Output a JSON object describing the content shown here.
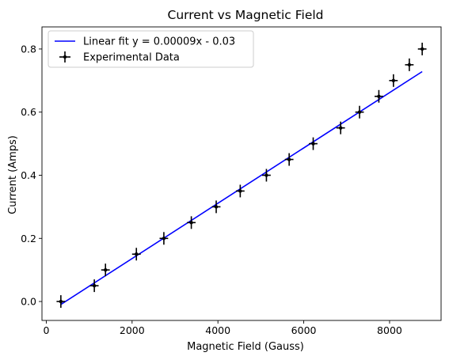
{
  "chart_data": {
    "type": "scatter",
    "title": "Current vs Magnetic Field",
    "xlabel": "Magnetic Field (Gauss)",
    "ylabel": "Current (Amps)",
    "xlim": [
      -100,
      9200
    ],
    "ylim": [
      -0.06,
      0.87
    ],
    "xticks": [
      0,
      2000,
      4000,
      6000,
      8000
    ],
    "xtick_labels": [
      "0",
      "2000",
      "4000",
      "6000",
      "8000"
    ],
    "yticks": [
      0.0,
      0.2,
      0.4,
      0.6,
      0.8
    ],
    "ytick_labels": [
      "0.0",
      "0.2",
      "0.4",
      "0.6",
      "0.8"
    ],
    "grid": false,
    "legend_position": "top-left",
    "series": [
      {
        "name": "Linear fit y = 0.00009x - 0.03",
        "kind": "line",
        "color": "#0000ff",
        "x": [
          340,
          8760
        ],
        "y": [
          -0.0094,
          0.7284
        ]
      },
      {
        "name": "Experimental Data",
        "kind": "errorbar",
        "color": "#000000",
        "x": [
          340,
          1120,
          1380,
          2100,
          2740,
          3380,
          3960,
          4520,
          5130,
          5660,
          6220,
          6860,
          7300,
          7750,
          8090,
          8460,
          8760
        ],
        "y": [
          0.0,
          0.05,
          0.1,
          0.15,
          0.2,
          0.25,
          0.3,
          0.35,
          0.4,
          0.45,
          0.5,
          0.55,
          0.6,
          0.65,
          0.7,
          0.75,
          0.8
        ],
        "x_err": 100,
        "y_err": 0.02
      }
    ]
  }
}
